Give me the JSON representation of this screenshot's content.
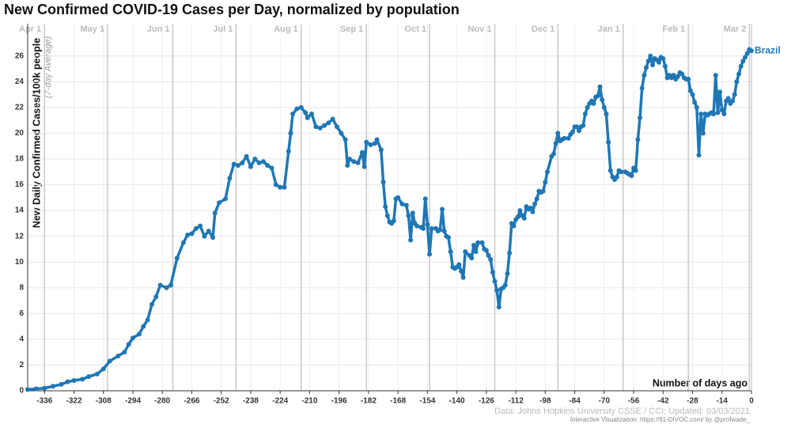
{
  "chart_data": {
    "type": "line",
    "title": "New Confirmed COVID-19 Cases per Day, normalized by population",
    "y_label": "New Daily Confirmed Cases/100k people",
    "y_sublabel": "(7-day Average)",
    "x_label": "Number of days ago",
    "source": "Data: Johns Hopkins University CSSE / CCI; Updated: 03/03/2021",
    "credit": "Interactive Visualization: https://91-DIVOC.com/ by @profwade_",
    "xlim": [
      -344,
      0
    ],
    "ylim": [
      0,
      28.5
    ],
    "xticks": [
      -336,
      -322,
      -308,
      -294,
      -280,
      -266,
      -252,
      -238,
      -224,
      -210,
      -196,
      -182,
      -168,
      -154,
      -140,
      -126,
      -112,
      -98,
      -84,
      -70,
      -56,
      -42,
      -28,
      -14,
      0
    ],
    "yticks": [
      0,
      2,
      4,
      6,
      8,
      10,
      12,
      14,
      16,
      18,
      20,
      22,
      24,
      26
    ],
    "month_marks": [
      {
        "value": -336,
        "label": "Apr 1"
      },
      {
        "value": -306,
        "label": "May 1"
      },
      {
        "value": -275,
        "label": "Jun 1"
      },
      {
        "value": -245,
        "label": "Jul 1"
      },
      {
        "value": -214,
        "label": "Aug 1"
      },
      {
        "value": -183,
        "label": "Sep 1"
      },
      {
        "value": -153,
        "label": "Oct 1"
      },
      {
        "value": -122,
        "label": "Nov 1"
      },
      {
        "value": -92,
        "label": "Dec 1"
      },
      {
        "value": -61,
        "label": "Jan 1"
      },
      {
        "value": -30,
        "label": "Feb 1"
      },
      {
        "value": -1,
        "label": "Mar 2"
      }
    ],
    "grid": true,
    "x": [
      -344,
      -340,
      -336,
      -332,
      -328,
      -325,
      -322,
      -318,
      -315,
      -311,
      -308,
      -305,
      -301,
      -298,
      -296,
      -294,
      -291,
      -289,
      -287,
      -285,
      -283,
      -281,
      -278,
      -276,
      -273,
      -270,
      -268,
      -266,
      -264,
      -262,
      -260,
      -258,
      -256,
      -255,
      -253,
      -250,
      -248,
      -246,
      -244,
      -242,
      -240,
      -238,
      -236,
      -234,
      -232,
      -230,
      -228,
      -226,
      -224,
      -222,
      -220,
      -219,
      -218,
      -216,
      -214,
      -212,
      -211,
      -209,
      -207,
      -205,
      -203,
      -201,
      -199,
      -197,
      -195,
      -193,
      -192,
      -191,
      -189,
      -187,
      -185,
      -184,
      -183,
      -181,
      -179,
      -178,
      -176,
      -175,
      -174,
      -173,
      -172,
      -171,
      -170,
      -169,
      -168,
      -166,
      -164,
      -163,
      -162,
      -161,
      -160,
      -159,
      -157,
      -156,
      -155,
      -154,
      -153,
      -152,
      -150,
      -149,
      -148,
      -147,
      -146,
      -145,
      -144,
      -143,
      -142,
      -141,
      -140,
      -139,
      -138,
      -137,
      -136,
      -134,
      -133,
      -132,
      -131,
      -130,
      -128,
      -127,
      -126,
      -125,
      -124,
      -123,
      -122,
      -121,
      -120,
      -119,
      -118,
      -117,
      -116,
      -115,
      -114,
      -113,
      -112,
      -111,
      -110,
      -109,
      -108,
      -107,
      -106,
      -105,
      -104,
      -103,
      -102,
      -101,
      -100,
      -99,
      -98,
      -97,
      -95,
      -94,
      -93,
      -92,
      -91,
      -90,
      -89,
      -87,
      -86,
      -85,
      -84,
      -83,
      -82,
      -81,
      -80,
      -79,
      -78,
      -77,
      -76,
      -75,
      -74,
      -73,
      -72,
      -71,
      -70,
      -69,
      -68,
      -67,
      -66,
      -65,
      -64,
      -63,
      -62,
      -60,
      -59,
      -58,
      -57,
      -56,
      -55,
      -54,
      -53,
      -52,
      -51,
      -50,
      -49,
      -48,
      -47,
      -46,
      -45,
      -44,
      -43,
      -42,
      -41,
      -40,
      -39,
      -38,
      -37,
      -36,
      -35,
      -34,
      -33,
      -32,
      -31,
      -30,
      -29,
      -28,
      -27,
      -26,
      -25,
      -24,
      -23,
      -22,
      -21,
      -20,
      -19,
      -18,
      -17,
      -16,
      -15,
      -14,
      -13,
      -12,
      -11,
      -10,
      -9,
      -8,
      -7,
      -6,
      -5,
      -4,
      -3,
      -2,
      -1,
      0
    ],
    "series": [
      {
        "name": "Brazil",
        "color": "#1f77b4",
        "values": [
          0.1,
          0.15,
          0.2,
          0.35,
          0.5,
          0.7,
          0.8,
          0.9,
          1.1,
          1.3,
          1.7,
          2.3,
          2.7,
          3.0,
          3.6,
          4.1,
          4.4,
          5.0,
          5.5,
          6.7,
          7.3,
          8.2,
          8.0,
          8.2,
          10.3,
          11.5,
          12.1,
          12.2,
          12.6,
          12.8,
          12.0,
          12.4,
          11.9,
          13.8,
          14.6,
          14.9,
          16.5,
          17.6,
          17.5,
          17.7,
          18.2,
          17.4,
          18.0,
          17.7,
          17.8,
          17.5,
          17.3,
          16.0,
          15.8,
          15.8,
          18.6,
          20.0,
          21.5,
          21.9,
          22.0,
          21.6,
          21.2,
          21.5,
          20.5,
          20.4,
          20.6,
          20.8,
          21.1,
          20.5,
          20.0,
          19.5,
          17.5,
          18.0,
          17.8,
          17.7,
          18.5,
          17.4,
          19.3,
          19.1,
          19.2,
          19.5,
          18.7,
          16.2,
          14.3,
          13.6,
          13.1,
          13.0,
          13.2,
          14.9,
          15.0,
          14.5,
          14.4,
          13.6,
          11.7,
          13.8,
          13.0,
          12.8,
          12.7,
          12.6,
          14.9,
          12.9,
          10.6,
          12.6,
          12.6,
          12.4,
          12.5,
          14.1,
          12.4,
          12.0,
          11.9,
          10.8,
          9.6,
          9.5,
          9.6,
          9.8,
          9.3,
          8.8,
          10.8,
          10.5,
          10.3,
          11.3,
          10.8,
          11.5,
          11.5,
          11.0,
          10.9,
          10.5,
          10.2,
          9.2,
          8.5,
          7.8,
          6.5,
          7.9,
          8.0,
          8.2,
          9.1,
          10.7,
          13.0,
          12.8,
          13.3,
          13.5,
          14.0,
          13.6,
          13.4,
          14.3,
          14.1,
          14.2,
          13.9,
          14.5,
          14.9,
          15.5,
          15.4,
          15.5,
          16.2,
          17.0,
          18.2,
          18.4,
          19.2,
          20.0,
          19.4,
          19.5,
          19.6,
          19.6,
          19.9,
          20.1,
          20.5,
          20.5,
          20.2,
          20.5,
          20.6,
          21.5,
          22.0,
          22.3,
          22.5,
          22.3,
          22.8,
          22.9,
          23.6,
          22.6,
          22.0,
          21.5,
          19.3,
          17.1,
          16.6,
          16.4,
          16.6,
          17.1,
          17.0,
          17.0,
          16.9,
          16.8,
          16.7,
          17.3,
          17.1,
          19.5,
          21.2,
          23.5,
          24.5,
          25.1,
          25.6,
          26.0,
          25.3,
          25.8,
          25.7,
          25.5,
          25.9,
          25.8,
          25.2,
          24.3,
          24.5,
          24.3,
          24.5,
          24.2,
          24.4,
          24.7,
          24.6,
          24.3,
          24.2,
          24.2,
          23.3,
          23.0,
          22.4,
          22.0,
          18.3,
          21.5,
          20.0,
          21.5,
          21.4,
          21.5,
          21.6,
          21.5,
          24.5,
          21.6,
          23.2,
          21.8,
          21.5,
          22.5,
          22.7,
          22.3,
          22.5,
          23.0,
          24.0,
          24.6,
          25.2,
          25.6,
          25.9,
          26.2,
          26.5,
          26.4
        ]
      }
    ]
  }
}
